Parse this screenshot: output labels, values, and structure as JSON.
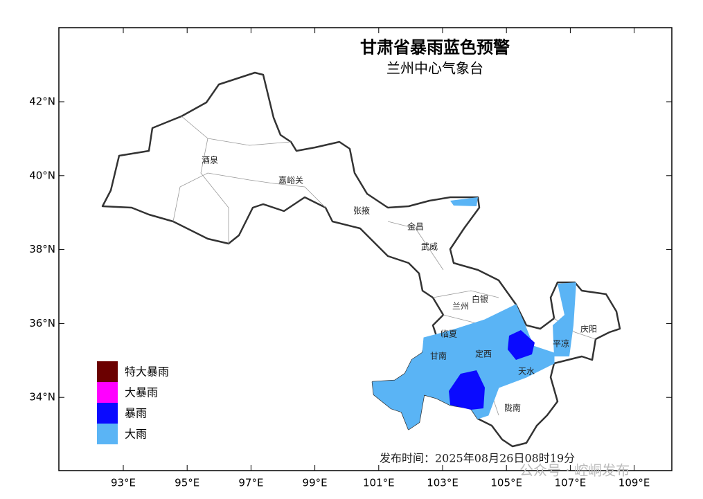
{
  "map": {
    "title": "甘肃省暴雨蓝色预警",
    "subtitle": "兰州中心气象台",
    "lon_ticks": [
      {
        "value": 93,
        "label": "93°E"
      },
      {
        "value": 95,
        "label": "95°E"
      },
      {
        "value": 97,
        "label": "97°E"
      },
      {
        "value": 99,
        "label": "99°E"
      },
      {
        "value": 101,
        "label": "101°E"
      },
      {
        "value": 103,
        "label": "103°E"
      },
      {
        "value": 105,
        "label": "105°E"
      },
      {
        "value": 107,
        "label": "107°E"
      },
      {
        "value": 109,
        "label": "109°E"
      }
    ],
    "lat_ticks": [
      {
        "value": 42,
        "label": "42°N"
      },
      {
        "value": 40,
        "label": "40°N"
      },
      {
        "value": 38,
        "label": "38°N"
      },
      {
        "value": 36,
        "label": "36°N"
      },
      {
        "value": 34,
        "label": "34°N"
      }
    ],
    "cities": [
      "酒泉",
      "嘉峪关",
      "张掖",
      "金昌",
      "武威",
      "兰州",
      "白银",
      "临夏",
      "甘南",
      "定西",
      "平凉",
      "庆阳",
      "天水",
      "陇南"
    ],
    "legend": [
      {
        "label": "特大暴雨",
        "color": "#6b0000"
      },
      {
        "label": "大暴雨",
        "color": "#ff00ff"
      },
      {
        "label": "暴雨",
        "color": "#0a0aff"
      },
      {
        "label": "大雨",
        "color": "#5ab4f5"
      }
    ],
    "issue_time": "发布时间：2025年08月26日08时19分",
    "watermark": "公众号 · 崆峒发布"
  }
}
